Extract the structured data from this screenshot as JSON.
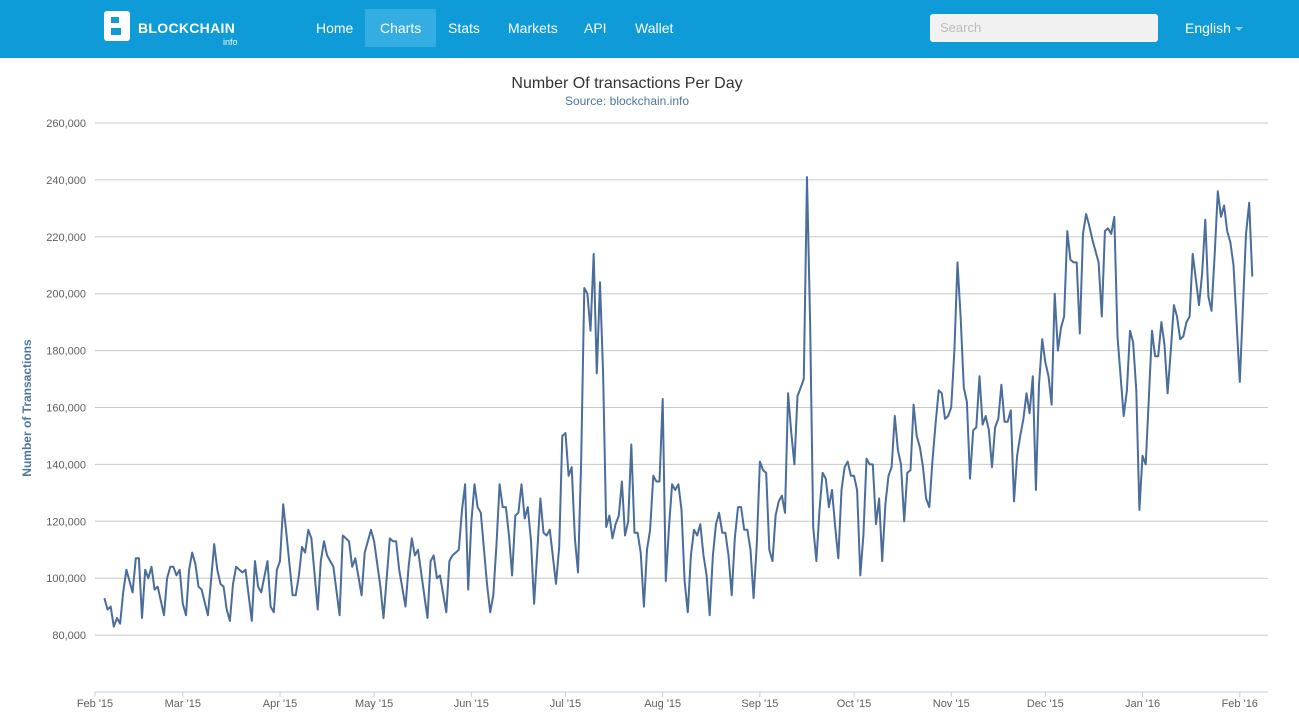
{
  "nav": {
    "logo": "BLOCKCHAIN",
    "logo_sub": "info",
    "items": [
      "Home",
      "Charts",
      "Stats",
      "Markets",
      "API",
      "Wallet"
    ],
    "active_index": 1,
    "search_placeholder": "Search",
    "language": "English"
  },
  "chart_data": {
    "type": "line",
    "title": "Number Of transactions Per Day",
    "subtitle": "Source: blockchain.info",
    "y_label": "Number of Transactions",
    "xlim": [
      0,
      374
    ],
    "xticks": [
      {
        "value": 0,
        "label": "Feb '15"
      },
      {
        "value": 28,
        "label": "Mar '15"
      },
      {
        "value": 59,
        "label": "Apr '15"
      },
      {
        "value": 89,
        "label": "May '15"
      },
      {
        "value": 120,
        "label": "Jun '15"
      },
      {
        "value": 150,
        "label": "Jul '15"
      },
      {
        "value": 181,
        "label": "Aug '15"
      },
      {
        "value": 212,
        "label": "Sep '15"
      },
      {
        "value": 242,
        "label": "Oct '15"
      },
      {
        "value": 273,
        "label": "Nov '15"
      },
      {
        "value": 303,
        "label": "Dec '15"
      },
      {
        "value": 334,
        "label": "Jan '16"
      },
      {
        "value": 365,
        "label": "Feb '16"
      }
    ],
    "ylim": [
      60000,
      260000
    ],
    "yticks": [
      {
        "value": 80000,
        "label": "80,000"
      },
      {
        "value": 100000,
        "label": "100,000"
      },
      {
        "value": 120000,
        "label": "120,000"
      },
      {
        "value": 140000,
        "label": "140,000"
      },
      {
        "value": 160000,
        "label": "160,000"
      },
      {
        "value": 180000,
        "label": "180,000"
      },
      {
        "value": 200000,
        "label": "200,000"
      },
      {
        "value": 220000,
        "label": "220,000"
      },
      {
        "value": 240000,
        "label": "240,000"
      },
      {
        "value": 260000,
        "label": "260,000"
      }
    ],
    "grid": true,
    "color": "#4a6d9b",
    "x": [
      3,
      4,
      5,
      6,
      7,
      8,
      9,
      10,
      12,
      13,
      14,
      15,
      16,
      17,
      18,
      19,
      20,
      22,
      23,
      24,
      25,
      26,
      27,
      28,
      29,
      30,
      31,
      32,
      33,
      34,
      36,
      37,
      38,
      39,
      40,
      41,
      42,
      43,
      44,
      45,
      46,
      47,
      48,
      50,
      51,
      52,
      53,
      55,
      56,
      57,
      58,
      59,
      60,
      61,
      63,
      64,
      65,
      66,
      67,
      68,
      69,
      71,
      72,
      73,
      74,
      75,
      76,
      78,
      79,
      80,
      81,
      82,
      83,
      85,
      86,
      87,
      88,
      89,
      91,
      92,
      93,
      94,
      95,
      96,
      97,
      99,
      100,
      101,
      102,
      103,
      105,
      106,
      107,
      108,
      109,
      110,
      112,
      113,
      114,
      115,
      116,
      117,
      118,
      119,
      120,
      121,
      122,
      123,
      125,
      126,
      127,
      128,
      129,
      130,
      131,
      132,
      133,
      134,
      135,
      136,
      137,
      138,
      139,
      140,
      141,
      142,
      143,
      144,
      145,
      147,
      148,
      149,
      150,
      151,
      152,
      153,
      154,
      155,
      156,
      157,
      158,
      159,
      160,
      161,
      162,
      163,
      164,
      165,
      166,
      167,
      168,
      169,
      170,
      171,
      172,
      173,
      174,
      175,
      176,
      177,
      178,
      179,
      180,
      181,
      182,
      183,
      184,
      185,
      186,
      187,
      188,
      189,
      190,
      191,
      192,
      193,
      194,
      195,
      196,
      197,
      198,
      199,
      200,
      201,
      202,
      203,
      204,
      205,
      206,
      207,
      208,
      209,
      210,
      211,
      212,
      213,
      214,
      215,
      216,
      217,
      218,
      219,
      220,
      221,
      222,
      223,
      224,
      225,
      226,
      227,
      228,
      229,
      230,
      231,
      232,
      233,
      234,
      235,
      236,
      237,
      238,
      239,
      240,
      241,
      242,
      243,
      244,
      245,
      246,
      247,
      248,
      249,
      250,
      251,
      252,
      253,
      254,
      255,
      256,
      257,
      258,
      259,
      260,
      261,
      262,
      263,
      264,
      265,
      266,
      267,
      268,
      269,
      270,
      271,
      272,
      273,
      274,
      275,
      276,
      277,
      278,
      279,
      280,
      281,
      282,
      283,
      284,
      285,
      286,
      287,
      288,
      289,
      290,
      291,
      292,
      293,
      294,
      295,
      296,
      297,
      298,
      299,
      300,
      301,
      302,
      303,
      304,
      305,
      306,
      307,
      308,
      309,
      310,
      311,
      312,
      313,
      314,
      315,
      316,
      317,
      318,
      319,
      320,
      321,
      322,
      323,
      324,
      325,
      326,
      327,
      328,
      329,
      330,
      331,
      332,
      333,
      334,
      335,
      336,
      337,
      338,
      339,
      340,
      341,
      342,
      343,
      344,
      345,
      346,
      347,
      348,
      349,
      350,
      351,
      352,
      353,
      354,
      355,
      356,
      357,
      358,
      359,
      360,
      361,
      362,
      363,
      365,
      367,
      368,
      369
    ],
    "values": [
      93000,
      89000,
      90000,
      83000,
      86000,
      84000,
      95000,
      103000,
      95000,
      107000,
      107000,
      86000,
      103000,
      100000,
      104000,
      96000,
      97000,
      87000,
      100000,
      104000,
      104000,
      101000,
      103000,
      91000,
      87000,
      103000,
      109000,
      105000,
      97000,
      96000,
      87000,
      99000,
      112000,
      103000,
      98000,
      97000,
      89000,
      85000,
      98000,
      104000,
      103000,
      102000,
      103000,
      85000,
      106000,
      97000,
      95000,
      106000,
      90000,
      88000,
      103000,
      106000,
      126000,
      116000,
      94000,
      94000,
      101000,
      111000,
      109000,
      117000,
      114000,
      89000,
      106000,
      113000,
      108000,
      106000,
      104000,
      87000,
      115000,
      114000,
      113000,
      104000,
      107000,
      94000,
      109000,
      113000,
      117000,
      113000,
      97000,
      86000,
      100000,
      114000,
      113000,
      113000,
      103000,
      90000,
      104000,
      114000,
      108000,
      110000,
      94000,
      86000,
      106000,
      108000,
      100000,
      101000,
      88000,
      106000,
      108000,
      109000,
      110000,
      124000,
      133000,
      96000,
      120000,
      133000,
      125000,
      123000,
      98000,
      88000,
      94000,
      112000,
      133000,
      125000,
      125000,
      115000,
      101000,
      122000,
      123000,
      133000,
      121000,
      125000,
      113000,
      91000,
      109000,
      128000,
      116000,
      115000,
      117000,
      98000,
      111000,
      150000,
      151000,
      136000,
      139000,
      114000,
      102000,
      140000,
      202000,
      200000,
      187000,
      214000,
      172000,
      204000,
      172000,
      118000,
      122000,
      114000,
      119000,
      122000,
      134000,
      115000,
      120000,
      147000,
      116000,
      116000,
      109000,
      90000,
      110000,
      117000,
      136000,
      134000,
      134000,
      163000,
      99000,
      118000,
      133000,
      131000,
      133000,
      124000,
      99000,
      88000,
      108000,
      117000,
      115000,
      119000,
      108000,
      101000,
      87000,
      108000,
      119000,
      123000,
      116000,
      116000,
      108000,
      94000,
      114000,
      125000,
      125000,
      117000,
      117000,
      110000,
      93000,
      112000,
      141000,
      138000,
      137000,
      110000,
      106000,
      122000,
      127000,
      129000,
      123000,
      165000,
      151000,
      140000,
      164000,
      167000,
      170000,
      241000,
      190000,
      118000,
      106000,
      124000,
      137000,
      135000,
      125000,
      131000,
      118000,
      107000,
      131000,
      139000,
      141000,
      136000,
      136000,
      131000,
      101000,
      115000,
      142000,
      140000,
      140000,
      119000,
      128000,
      106000,
      126000,
      136000,
      139000,
      157000,
      145000,
      140000,
      120000,
      137000,
      138000,
      161000,
      150000,
      146000,
      139000,
      128000,
      125000,
      141000,
      154000,
      166000,
      165000,
      156000,
      157000,
      160000,
      180000,
      211000,
      192000,
      167000,
      162000,
      135000,
      152000,
      153000,
      171000,
      154000,
      157000,
      152000,
      139000,
      153000,
      156000,
      168000,
      155000,
      155000,
      159000,
      127000,
      143000,
      150000,
      156000,
      165000,
      158000,
      171000,
      131000,
      168000,
      184000,
      176000,
      171000,
      161000,
      200000,
      180000,
      188000,
      192000,
      222000,
      212000,
      211000,
      211000,
      186000,
      221000,
      228000,
      224000,
      219000,
      215000,
      211000,
      192000,
      222000,
      223000,
      221000,
      227000,
      185000,
      171000,
      157000,
      166000,
      187000,
      183000,
      166000,
      124000,
      143000,
      140000,
      163000,
      187000,
      178000,
      178000,
      190000,
      182000,
      165000,
      180000,
      196000,
      192000,
      184000,
      185000,
      190000,
      192000,
      214000,
      205000,
      196000,
      207000,
      226000,
      199000,
      194000,
      214000,
      236000,
      227000,
      231000,
      222000,
      218000,
      210000,
      169000,
      221000,
      232000,
      206000
    ]
  }
}
